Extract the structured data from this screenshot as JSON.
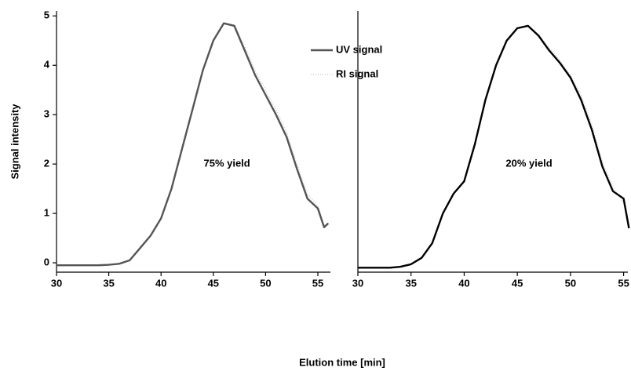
{
  "chart_data": [
    {
      "type": "line",
      "xlabel": "Elution time [min]",
      "ylabel": "Signal intensity",
      "annotation": "75% yield",
      "annotation_x": 46.3,
      "annotation_y": 2,
      "x": [
        30,
        31,
        32,
        33,
        34,
        35,
        36,
        37,
        38,
        39,
        40,
        41,
        42,
        43,
        44,
        45,
        46,
        47,
        48,
        49,
        50,
        51,
        52,
        53,
        54,
        55,
        55.6,
        56
      ],
      "series": [
        {
          "name": "UV signal",
          "color": "#555555",
          "style": "solid",
          "values": [
            -0.05,
            -0.05,
            -0.05,
            -0.05,
            -0.05,
            -0.04,
            -0.02,
            0.05,
            0.3,
            0.55,
            0.9,
            1.5,
            2.3,
            3.1,
            3.9,
            4.5,
            4.85,
            4.8,
            4.3,
            3.8,
            3.4,
            3.0,
            2.55,
            1.9,
            1.3,
            1.1,
            0.72,
            0.8
          ]
        },
        {
          "name": "RI signal",
          "color": "#cccccc",
          "style": "dotted",
          "values": [
            -0.05,
            -0.05,
            -0.05,
            -0.05,
            -0.05,
            -0.04,
            -0.02,
            0.05,
            0.3,
            0.55,
            0.9,
            1.5,
            2.3,
            3.1,
            3.9,
            4.5,
            4.85,
            4.82,
            4.38,
            3.9,
            3.5,
            3.1,
            2.65,
            2.0,
            1.4,
            1.15,
            0.75,
            0.82
          ]
        }
      ],
      "xlim": [
        30,
        56.2
      ],
      "xticks": [
        30,
        35,
        40,
        45,
        50,
        55
      ],
      "ylim": [
        -0.19,
        5.1
      ],
      "yticks": [
        0,
        1,
        2,
        3,
        4,
        5
      ],
      "legend": "top-right"
    },
    {
      "type": "line",
      "annotation": "20% yield",
      "annotation_x": 46.1,
      "annotation_y": 2,
      "x": [
        30,
        31,
        32,
        33,
        34,
        35,
        36,
        37,
        38,
        39,
        40,
        41,
        42,
        43,
        44,
        45,
        46,
        47,
        48,
        49,
        50,
        51,
        52,
        53,
        54,
        55,
        55.5
      ],
      "series": [
        {
          "color": "#000000",
          "style": "solid",
          "values": [
            -0.1,
            -0.1,
            -0.1,
            -0.1,
            -0.08,
            -0.03,
            0.1,
            0.4,
            1.0,
            1.4,
            1.65,
            2.4,
            3.3,
            4.0,
            4.5,
            4.75,
            4.8,
            4.6,
            4.3,
            4.05,
            3.75,
            3.3,
            2.7,
            1.95,
            1.45,
            1.3,
            0.7
          ]
        },
        {
          "color": "#cccccc",
          "style": "dotted",
          "values": [
            -0.1,
            -0.1,
            -0.1,
            -0.1,
            -0.08,
            -0.03,
            0.1,
            0.4,
            1.0,
            1.4,
            1.65,
            2.4,
            3.3,
            4.0,
            4.5,
            4.75,
            4.8,
            4.62,
            4.35,
            4.1,
            3.8,
            3.4,
            2.8,
            2.05,
            1.55,
            1.2,
            0.75
          ]
        }
      ],
      "xlim": [
        30,
        55.4
      ],
      "xticks": [
        30,
        35,
        40,
        45,
        50,
        55
      ],
      "ylim": [
        -0.19,
        5.1
      ]
    }
  ]
}
